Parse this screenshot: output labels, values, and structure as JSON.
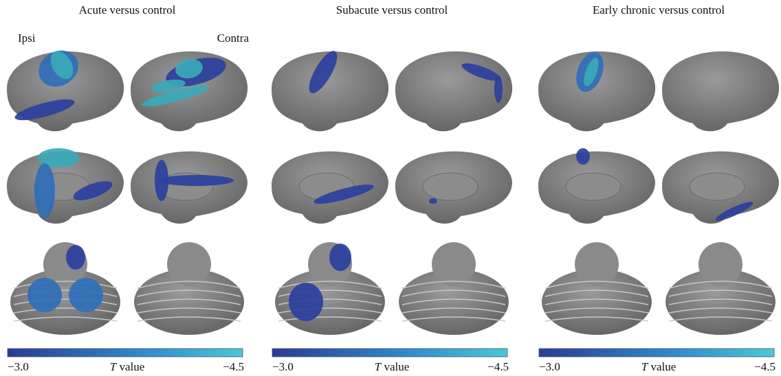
{
  "panels": [
    {
      "title": "Acute versus control",
      "colorbar": {
        "min_label": "−3.0",
        "symbol": "T",
        "label": "value",
        "max_label": "−4.5"
      }
    },
    {
      "title": "Subacute versus control",
      "colorbar": {
        "min_label": "−3.0",
        "symbol": "T",
        "label": "value",
        "max_label": "−4.5"
      }
    },
    {
      "title": "Early chronic versus control",
      "colorbar": {
        "min_label": "−3.0",
        "symbol": "T",
        "label": "value",
        "max_label": "−4.5"
      }
    }
  ],
  "hemisphere_labels": {
    "left": "Ipsi",
    "right": "Contra"
  }
}
